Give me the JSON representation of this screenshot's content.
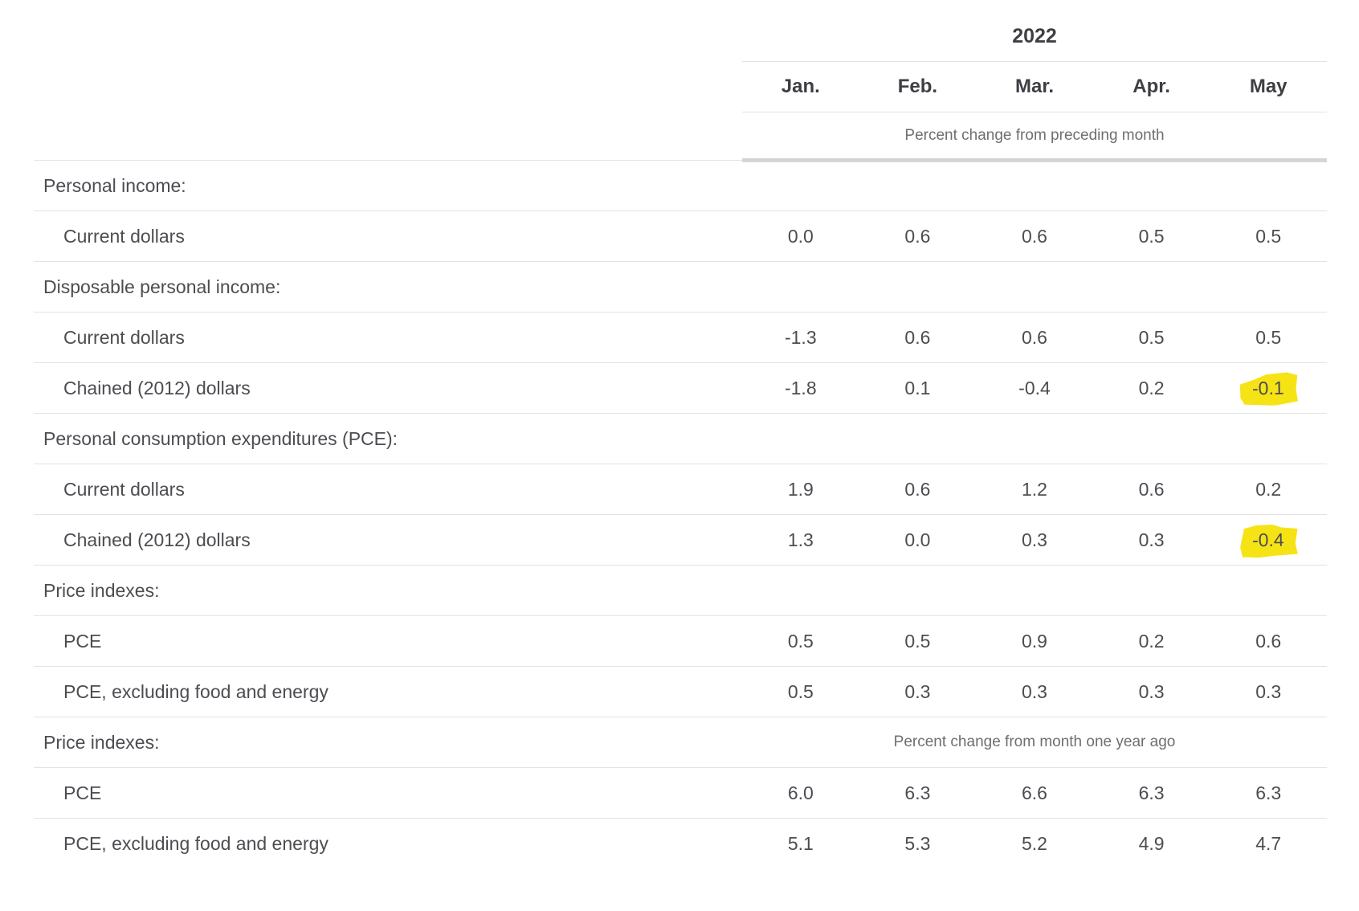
{
  "table": {
    "year": "2022",
    "months": [
      "Jan.",
      "Feb.",
      "Mar.",
      "Apr.",
      "May"
    ],
    "top_subheader": "Percent change from preceding month",
    "highlight_color": "#f6e315",
    "rows": [
      {
        "type": "section",
        "label": "Personal income:"
      },
      {
        "type": "data",
        "label": "Current dollars",
        "values": [
          "0.0",
          "0.6",
          "0.6",
          "0.5",
          "0.5"
        ]
      },
      {
        "type": "section",
        "label": "Disposable personal income:"
      },
      {
        "type": "data",
        "label": "Current dollars",
        "values": [
          "-1.3",
          "0.6",
          "0.6",
          "0.5",
          "0.5"
        ]
      },
      {
        "type": "data",
        "label": "Chained (2012) dollars",
        "values": [
          "-1.8",
          "0.1",
          "-0.4",
          "0.2",
          "-0.1"
        ],
        "highlight": [
          4
        ]
      },
      {
        "type": "section",
        "label": "Personal consumption expenditures (PCE):"
      },
      {
        "type": "data",
        "label": "Current dollars",
        "values": [
          "1.9",
          "0.6",
          "1.2",
          "0.6",
          "0.2"
        ]
      },
      {
        "type": "data",
        "label": "Chained (2012) dollars",
        "values": [
          "1.3",
          "0.0",
          "0.3",
          "0.3",
          "-0.4"
        ],
        "highlight": [
          4
        ]
      },
      {
        "type": "section",
        "label": "Price indexes:"
      },
      {
        "type": "data",
        "label": "PCE",
        "values": [
          "0.5",
          "0.5",
          "0.9",
          "0.2",
          "0.6"
        ]
      },
      {
        "type": "data",
        "label": "PCE, excluding food and energy",
        "values": [
          "0.5",
          "0.3",
          "0.3",
          "0.3",
          "0.3"
        ]
      },
      {
        "type": "section",
        "label": "Price indexes:",
        "span": "Percent change from month one year ago"
      },
      {
        "type": "data",
        "label": "PCE",
        "values": [
          "6.0",
          "6.3",
          "6.6",
          "6.3",
          "6.3"
        ]
      },
      {
        "type": "data",
        "label": "PCE, excluding food and energy",
        "values": [
          "5.1",
          "5.3",
          "5.2",
          "4.9",
          "4.7"
        ]
      }
    ]
  }
}
